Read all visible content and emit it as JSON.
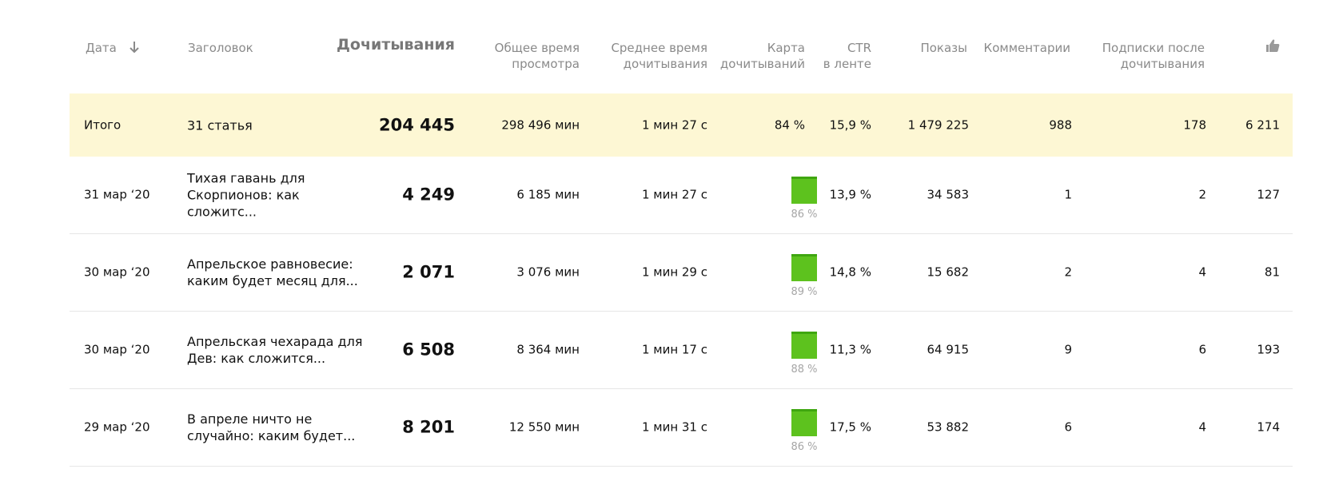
{
  "columns": {
    "date": "Дата",
    "title": "Заголовок",
    "reads": "Дочитывания",
    "total_time_1": "Общее время",
    "total_time_2": "просмотра",
    "avg_time_1": "Среднее время",
    "avg_time_2": "дочитывания",
    "read_map_1": "Карта",
    "read_map_2": "дочитываний",
    "ctr_1": "CTR",
    "ctr_2": "в ленте",
    "impressions": "Показы",
    "comments": "Комментарии",
    "subs_1": "Подписки после",
    "subs_2": "дочитывания",
    "likes_icon": "thumbs-up-icon",
    "sort_icon": "arrow-down-icon"
  },
  "total": {
    "label": "Итого",
    "title": "31 статья",
    "reads": "204 445",
    "total_time": "298 496 мин",
    "avg_time": "1 мин 27 с",
    "read_map": "84 %",
    "ctr": "15,9 %",
    "impressions": "1 479 225",
    "comments": "988",
    "subscriptions": "178",
    "likes": "6 211"
  },
  "rows": [
    {
      "date": "31 мар ‘20",
      "title": "Тихая гавань для Скорпионов: как сложитс...",
      "reads": "4 249",
      "total_time": "6 185 мин",
      "avg_time": "1 мин 27 с",
      "read_map": "86 %",
      "ctr": "13,9 %",
      "impressions": "34 583",
      "comments": "1",
      "subscriptions": "2",
      "likes": "127"
    },
    {
      "date": "30 мар ‘20",
      "title": "Апрельское равновесие: каким будет месяц для...",
      "reads": "2 071",
      "total_time": "3 076 мин",
      "avg_time": "1 мин 29 с",
      "read_map": "89 %",
      "ctr": "14,8 %",
      "impressions": "15 682",
      "comments": "2",
      "subscriptions": "4",
      "likes": "81"
    },
    {
      "date": "30 мар ‘20",
      "title": "Апрельская чехарада для Дев: как сложится...",
      "reads": "6 508",
      "total_time": "8 364 мин",
      "avg_time": "1 мин 17 с",
      "read_map": "88 %",
      "ctr": "11,3 %",
      "impressions": "64 915",
      "comments": "9",
      "subscriptions": "6",
      "likes": "193"
    },
    {
      "date": "29 мар ‘20",
      "title": "В апреле ничто не случайно: каким будет...",
      "reads": "8 201",
      "total_time": "12 550 мин",
      "avg_time": "1 мин 31 с",
      "read_map": "86 %",
      "ctr": "17,5 %",
      "impressions": "53 882",
      "comments": "6",
      "subscriptions": "4",
      "likes": "174"
    }
  ],
  "colors": {
    "total_background": "#fdf7d4",
    "map_bar": "#5dc21e",
    "header_text": "#8a8a8a"
  }
}
